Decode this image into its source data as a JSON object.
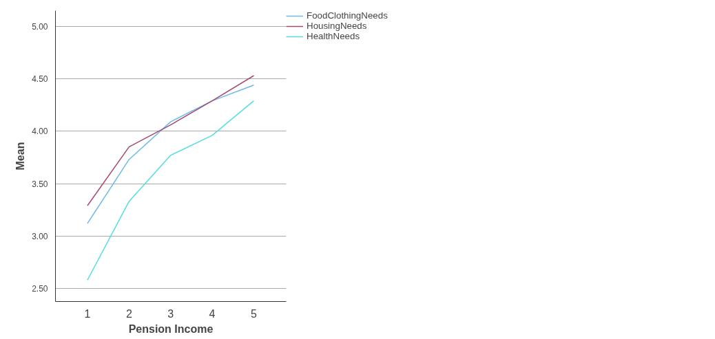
{
  "chart_data": {
    "type": "line",
    "xlabel": "Pension Income",
    "ylabel": "Mean",
    "categories": [
      "1",
      "2",
      "3",
      "4",
      "5"
    ],
    "series": [
      {
        "name": "FoodClothingNeeds",
        "color": "#6cb8ec",
        "values": [
          3.12,
          3.73,
          4.09,
          4.29,
          4.44
        ]
      },
      {
        "name": "HousingNeeds",
        "color": "#a8476f",
        "values": [
          3.29,
          3.85,
          4.06,
          4.29,
          4.53
        ]
      },
      {
        "name": "HealthNeeds",
        "color": "#52dde0",
        "values": [
          2.58,
          3.33,
          3.77,
          3.96,
          4.29
        ]
      }
    ],
    "ylim": [
      2.375,
      5.15
    ],
    "yticks": [
      {
        "value": 2.5,
        "label": "2.50"
      },
      {
        "value": 3.0,
        "label": "3.00"
      },
      {
        "value": 3.5,
        "label": "3.50"
      },
      {
        "value": 4.0,
        "label": "4.00"
      },
      {
        "value": 4.5,
        "label": "4.50"
      },
      {
        "value": 5.0,
        "label": "5.00"
      }
    ],
    "grid": "y",
    "legend": "top right",
    "marker": "none",
    "line_style": "solid"
  }
}
